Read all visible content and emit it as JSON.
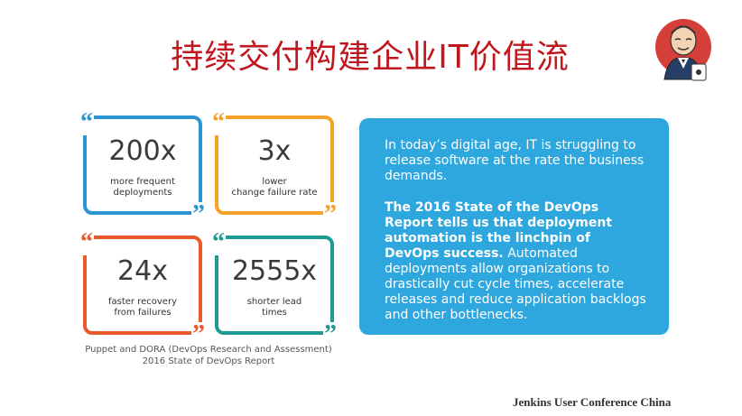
{
  "header": {
    "title": "持续交付构建企业IT价值流"
  },
  "logo": {
    "icon_name": "jenkins-butler-logo-icon",
    "colors": {
      "circle": "#d43f3a",
      "skin": "#f4d2b4",
      "jacket": "#253f66",
      "shirt": "#ffffff"
    }
  },
  "stats": {
    "cards": [
      {
        "value": "200x",
        "label": "more frequent\ndeployments",
        "color": "#2b95d3"
      },
      {
        "value": "3x",
        "label": "lower\nchange failure rate",
        "color": "#f6a12a"
      },
      {
        "value": "24x",
        "label": "faster recovery\nfrom failures",
        "color": "#eb5829"
      },
      {
        "value": "2555x",
        "label": "shorter lead\ntimes",
        "color": "#1d9b92"
      }
    ],
    "source_line1": "Puppet and DORA (DevOps Research and Assessment)",
    "source_line2": "2016 State of DevOps Report"
  },
  "info": {
    "paragraph_1": "In today’s digital age, IT is struggling to release software at the rate the business demands.",
    "paragraph_2_bold": "The 2016 State of the DevOps Report tells us that deployment automation is the linchpin of DevOps success.",
    "paragraph_2_normal": " Automated deployments allow organizations to drastically cut cycle times, accelerate releases and reduce application backlogs and other bottlenecks.",
    "background_color": "#2ea6de"
  },
  "footer": {
    "text": "Jenkins User Conference China"
  }
}
